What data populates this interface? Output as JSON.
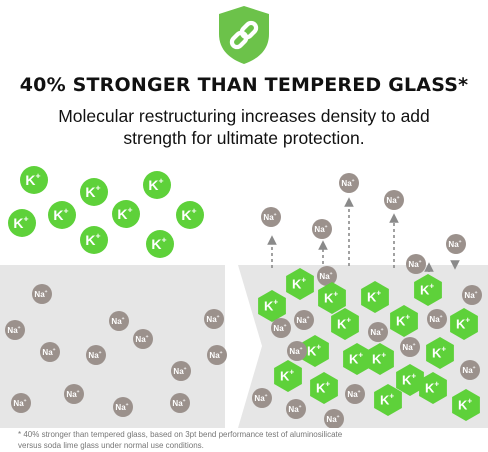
{
  "headline": "40% STRONGER THAN TEMPERED GLASS*",
  "subheadline": "Molecular restructuring increases density to add strength for ultimate protection.",
  "footnote": {
    "line1": "* 40% stronger than tempered glass, based on 3pt bend performance test of aluminosilicate",
    "line2": "versus soda lime glass under normal use conditions."
  },
  "ions": {
    "potassium": "K",
    "potassium_charge": "+",
    "sodium": "Na",
    "sodium_charge": "+"
  },
  "colors": {
    "brand_green": "#6cc24a",
    "bright_green": "#5ed13a",
    "sodium_gray": "#9b918c",
    "glass_fill": "#e6e6e6",
    "arrow_green": "#5ed13a",
    "arrow_gray": "#8a8a8a"
  },
  "icons": {
    "badge": "shield-chain-link-icon"
  }
}
